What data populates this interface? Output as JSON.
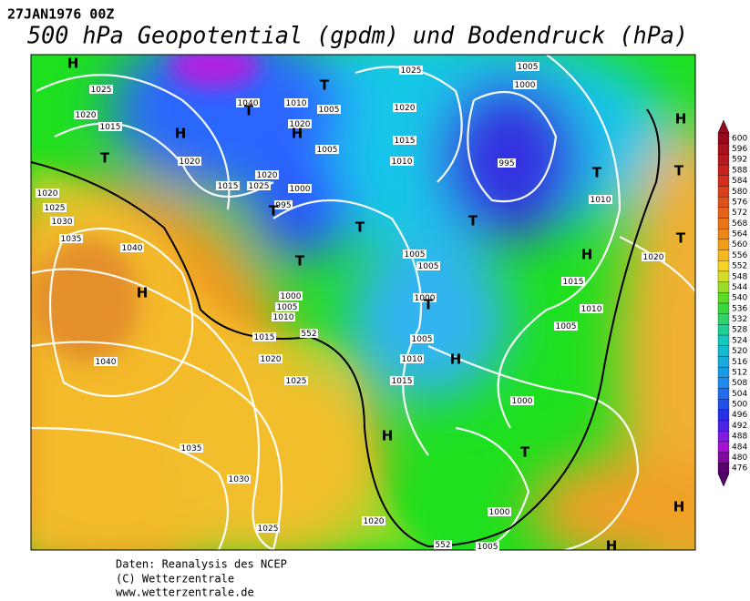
{
  "header": {
    "date": "27JAN1976 00Z",
    "title": "500 hPa Geopotential (gpdm) und Bodendruck (hPa)"
  },
  "map": {
    "pressure_labels": [
      "1025",
      "1020",
      "1015",
      "1020",
      "1040",
      "1010",
      "1005",
      "1020",
      "1005",
      "1020",
      "1025",
      "1015",
      "1000",
      "995",
      "1025",
      "1020",
      "1015",
      "1010",
      "1005",
      "1000",
      "995",
      "1010",
      "1020",
      "1025",
      "1030",
      "1035",
      "1040",
      "1040",
      "1005",
      "1005",
      "1000",
      "1005",
      "1010",
      "1000",
      "1005",
      "1015",
      "1010",
      "1005",
      "1015",
      "1020",
      "1025",
      "1010",
      "1015",
      "1020",
      "1000",
      "1035",
      "1030",
      "1025",
      "1020",
      "1000",
      "1005",
      "552",
      "552"
    ],
    "centers": [
      "H",
      "T",
      "T",
      "H",
      "H",
      "T",
      "T",
      "T",
      "T",
      "H",
      "T",
      "T",
      "H",
      "T",
      "T",
      "H",
      "T",
      "H",
      "H",
      "T",
      "H",
      "H"
    ]
  },
  "colorbar": {
    "ticks": [
      600,
      596,
      592,
      588,
      584,
      580,
      576,
      572,
      568,
      564,
      560,
      556,
      552,
      548,
      544,
      540,
      536,
      532,
      528,
      524,
      520,
      516,
      512,
      508,
      504,
      500,
      496,
      492,
      488,
      484,
      480,
      476
    ]
  },
  "footer": {
    "lines": [
      "Daten: Reanalysis des NCEP",
      "(C) Wetterzentrale",
      "www.wetterzentrale.de"
    ]
  }
}
